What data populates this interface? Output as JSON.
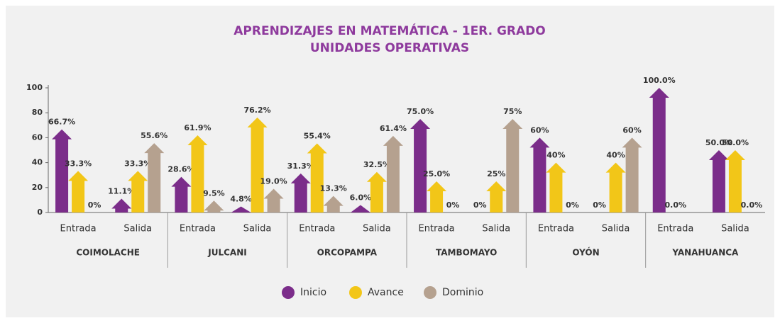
{
  "chart_data": {
    "type": "bar",
    "title": "APRENDIZAJES EN MATEMÁTICA - 1ER. GRADO",
    "subtitle": "UNIDADES OPERATIVAS",
    "categories": [
      "Entrada",
      "Salida",
      "Entrada",
      "Salida",
      "Entrada",
      "Salida",
      "Entrada",
      "Salida",
      "Entrada",
      "Salida",
      "Entrada",
      "Salida"
    ],
    "groups": [
      "COIMOLACHE",
      "JULCANI",
      "ORCOPAMPA",
      "TAMBOMAYO",
      "OYÓN",
      "YANAHUANCA"
    ],
    "series": [
      {
        "name": "Inicio",
        "color": "#7b2d8a",
        "values": [
          66.7,
          11.1,
          28.6,
          4.8,
          31.3,
          6.0,
          75.0,
          0,
          60,
          0,
          100.0,
          50.0
        ],
        "value_labels": [
          "66.7%",
          "11.1%",
          "28.6%",
          "4.8%",
          "31.3%",
          "6.0%",
          "75.0%",
          "0%",
          "60%",
          "0%",
          "100.0%",
          "50.0%"
        ]
      },
      {
        "name": "Avance",
        "color": "#f2c618",
        "values": [
          33.3,
          33.3,
          61.9,
          76.2,
          55.4,
          32.5,
          25.0,
          25,
          40,
          40,
          0.0,
          50.0
        ],
        "value_labels": [
          "33.3%",
          "33.3%",
          "61.9%",
          "76.2%",
          "55.4%",
          "32.5%",
          "25.0%",
          "25%",
          "40%",
          "40%",
          "0.0%",
          "50.0%"
        ]
      },
      {
        "name": "Dominio",
        "color": "#b5a18f",
        "values": [
          0,
          55.6,
          9.5,
          19.0,
          13.3,
          61.4,
          0,
          75,
          0,
          60,
          null,
          0.0
        ],
        "value_labels": [
          "0%",
          "55.6%",
          "9.5%",
          "19.0%",
          "13.3%",
          "61.4%",
          "0%",
          "75%",
          "0%",
          "60%",
          null,
          "0.0%"
        ]
      }
    ],
    "ylim": [
      0,
      100
    ],
    "yticks": [
      0,
      20,
      40,
      60,
      80,
      100
    ],
    "grid": false,
    "legend": "bottom"
  }
}
